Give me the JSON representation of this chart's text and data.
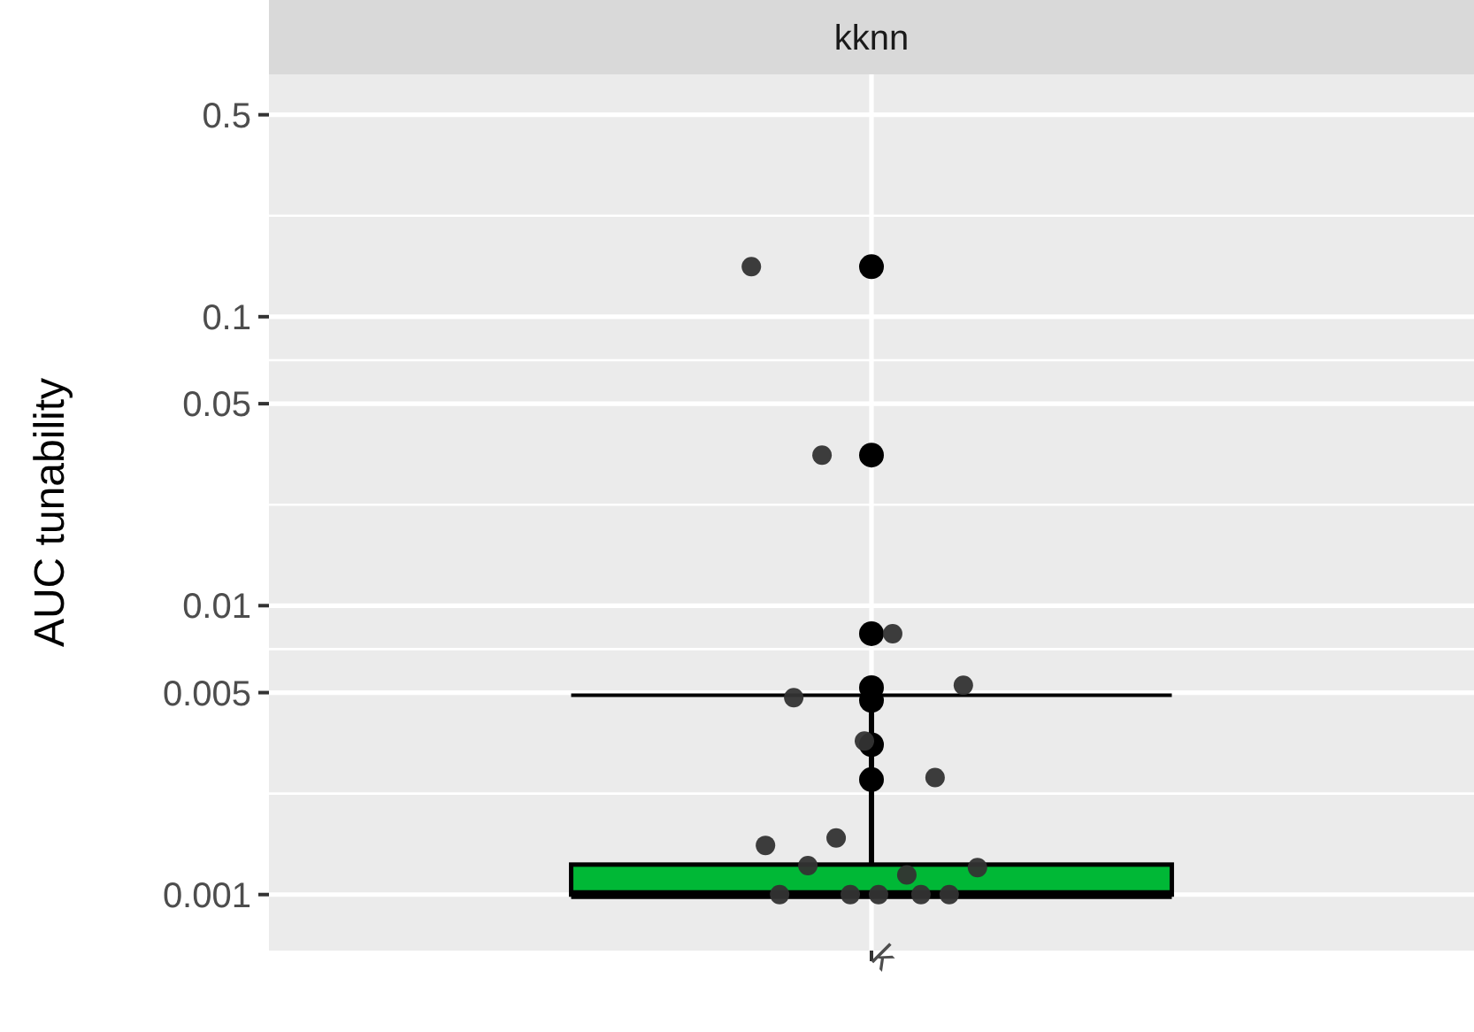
{
  "chart_data": {
    "type": "box",
    "title": "kknn",
    "ylabel": "AUC tunability",
    "categories": [
      "k"
    ],
    "log": "y",
    "ylim": [
      0.00064,
      0.69
    ],
    "yticks": [
      0.001,
      0.005,
      0.01,
      0.05,
      0.1,
      0.5
    ],
    "grid": true,
    "series": [
      {
        "type": "box",
        "color": "#00b836",
        "boxes": [
          {
            "low": 0.001,
            "q1": 0.001,
            "median": 0.001,
            "q3": 0.00127,
            "high": 0.0049,
            "outliers": [
              0.149,
              0.0332,
              0.008,
              0.0052,
              0.0047,
              0.0033,
              0.0025
            ]
          }
        ]
      },
      {
        "type": "scatter",
        "color": "#333333",
        "x": [
          "k",
          "k",
          "k",
          "k",
          "k",
          "k",
          "k",
          "k",
          "k",
          "k",
          "k",
          "k",
          "k",
          "k",
          "k",
          "k",
          "k"
        ],
        "values": [
          0.149,
          0.0332,
          0.008,
          0.0053,
          0.0048,
          0.0034,
          0.00254,
          0.00148,
          0.00157,
          0.00117,
          0.00124,
          0.00126,
          0.001,
          0.001,
          0.001,
          0.001,
          0.001
        ]
      }
    ]
  }
}
